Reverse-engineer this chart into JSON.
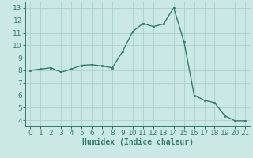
{
  "x": [
    0,
    1,
    2,
    3,
    4,
    5,
    6,
    7,
    8,
    9,
    10,
    11,
    12,
    13,
    14,
    15,
    16,
    17,
    18,
    19,
    20,
    21
  ],
  "y": [
    8.0,
    8.1,
    8.2,
    7.85,
    8.1,
    8.4,
    8.45,
    8.35,
    8.2,
    9.5,
    11.1,
    11.75,
    11.5,
    11.7,
    13.0,
    10.3,
    6.0,
    5.6,
    5.4,
    4.35,
    3.95,
    3.95
  ],
  "line_color": "#2e7d6e",
  "marker": "s",
  "markersize": 2.0,
  "linewidth": 1.0,
  "bg_color": "#cce8e5",
  "grid_color": "#aad0cc",
  "xlabel": "Humidex (Indice chaleur)",
  "xlabel_fontsize": 7,
  "tick_fontsize": 6.5,
  "xlim": [
    -0.5,
    21.5
  ],
  "ylim": [
    3.5,
    13.5
  ],
  "yticks": [
    4,
    5,
    6,
    7,
    8,
    9,
    10,
    11,
    12,
    13
  ],
  "xticks": [
    0,
    1,
    2,
    3,
    4,
    5,
    6,
    7,
    8,
    9,
    10,
    11,
    12,
    13,
    14,
    15,
    16,
    17,
    18,
    19,
    20,
    21
  ]
}
